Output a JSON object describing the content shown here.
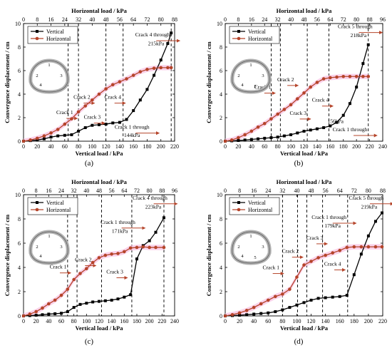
{
  "chart_data": [
    {
      "panel_label": "(a)",
      "type": "line",
      "xlabel": "Vertical load / kPa",
      "x2label": "Horizontal load / kPa",
      "ylabel": "Convergence displacement / cm",
      "xlim": [
        0,
        220
      ],
      "x2lim": [
        0,
        88
      ],
      "ylim": [
        0,
        10
      ],
      "xticks": [
        0,
        20,
        40,
        60,
        80,
        100,
        120,
        140,
        160,
        180,
        200,
        220
      ],
      "x2ticks": [
        0,
        8,
        16,
        24,
        32,
        40,
        48,
        56,
        64,
        72,
        80,
        88
      ],
      "yticks": [
        0,
        2,
        4,
        6,
        8,
        10
      ],
      "legend": "top-left",
      "ring_labels": [
        "1",
        "2",
        "3",
        "4"
      ],
      "colors": {
        "vertical": "#000000",
        "horizontal": "#b5442a",
        "band": "#f8c3e3",
        "arrow": "#b5442a"
      },
      "series": [
        {
          "name": "Vertical",
          "x": [
            0,
            10,
            20,
            30,
            40,
            50,
            60,
            70,
            80,
            90,
            100,
            110,
            120,
            130,
            140,
            150,
            160,
            170,
            180,
            190,
            200,
            210,
            215
          ],
          "values": [
            0,
            0.05,
            0.1,
            0.2,
            0.35,
            0.45,
            0.5,
            0.55,
            0.85,
            1.15,
            1.35,
            1.4,
            1.45,
            1.55,
            1.6,
            1.85,
            2.6,
            3.5,
            4.4,
            5.6,
            6.9,
            8.3,
            9.2
          ]
        },
        {
          "name": "Horizontal",
          "x": [
            0,
            10,
            20,
            30,
            40,
            50,
            60,
            70,
            80,
            90,
            100,
            110,
            120,
            130,
            140,
            150,
            160,
            170,
            180,
            190,
            200,
            210,
            215
          ],
          "values": [
            0,
            0.1,
            0.25,
            0.45,
            0.7,
            1.0,
            1.45,
            1.9,
            2.5,
            3.0,
            3.5,
            4.0,
            4.45,
            4.8,
            5.05,
            5.3,
            5.6,
            5.9,
            6.1,
            6.2,
            6.25,
            6.25,
            6.25
          ]
        }
      ],
      "vlines": [
        65,
        80,
        120,
        145,
        215
      ],
      "annotations": [
        {
          "text": "Crack 1",
          "x": 60,
          "y": 2.3,
          "arrow": true
        },
        {
          "text": "Crack 2",
          "x": 85,
          "y": 3.6,
          "arrow": true
        },
        {
          "text": "Crack 3",
          "x": 100,
          "y": 1.9,
          "arrow": true
        },
        {
          "text": "Crack 4",
          "x": 130,
          "y": 3.6,
          "arrow": true
        },
        {
          "text": "Crack 1 through",
          "x": 158,
          "y": 1.05,
          "arrow": true
        },
        {
          "text": "144kPa",
          "x": 158,
          "y": 0.35,
          "arrow": false
        },
        {
          "text": "Crack 4 through",
          "x": 188,
          "y": 8.9,
          "arrow": true
        },
        {
          "text": "215kPa",
          "x": 193,
          "y": 8.15,
          "arrow": false
        }
      ]
    },
    {
      "panel_label": "(b)",
      "type": "line",
      "xlabel": "Vertical load / kPa",
      "x2label": "Horizontal load / kPa",
      "ylabel": "Convergence displacement / cm",
      "xlim": [
        0,
        240
      ],
      "x2lim": [
        0,
        96
      ],
      "ylim": [
        0,
        10
      ],
      "xticks": [
        0,
        20,
        40,
        60,
        80,
        100,
        120,
        140,
        160,
        180,
        200,
        220,
        240
      ],
      "x2ticks": [
        0,
        8,
        16,
        24,
        32,
        40,
        48,
        56,
        64,
        72,
        80,
        88,
        96
      ],
      "yticks": [
        0,
        2,
        4,
        6,
        8,
        10
      ],
      "legend": "top-left",
      "ring_labels": [
        "1",
        "2",
        "3",
        "4",
        "5"
      ],
      "colors": {
        "vertical": "#000000",
        "horizontal": "#b5442a",
        "band": "#f8c3e3",
        "arrow": "#b5442a"
      },
      "series": [
        {
          "name": "Vertical",
          "x": [
            0,
            10,
            20,
            30,
            40,
            50,
            60,
            70,
            80,
            90,
            100,
            110,
            120,
            130,
            140,
            150,
            160,
            170,
            180,
            190,
            200,
            210,
            218
          ],
          "values": [
            0,
            0.03,
            0.06,
            0.1,
            0.15,
            0.2,
            0.25,
            0.3,
            0.35,
            0.45,
            0.55,
            0.7,
            0.85,
            0.95,
            1.05,
            1.15,
            1.3,
            1.6,
            2.2,
            3.2,
            4.6,
            6.6,
            8.2
          ]
        },
        {
          "name": "Horizontal",
          "x": [
            0,
            10,
            20,
            30,
            40,
            50,
            60,
            70,
            80,
            90,
            100,
            110,
            120,
            130,
            140,
            150,
            160,
            170,
            180,
            190,
            200,
            210,
            218
          ],
          "values": [
            0,
            0.1,
            0.3,
            0.55,
            0.85,
            1.2,
            1.5,
            1.9,
            2.3,
            2.7,
            3.1,
            3.6,
            4.1,
            4.6,
            5.0,
            5.3,
            5.4,
            5.45,
            5.5,
            5.5,
            5.5,
            5.5,
            5.5
          ]
        }
      ],
      "vlines": [
        70,
        84,
        125,
        158,
        218
      ],
      "annotations": [
        {
          "text": "Crack 1",
          "x": 57,
          "y": 4.45,
          "arrow": true
        },
        {
          "text": "Crack 2",
          "x": 92,
          "y": 5.1,
          "arrow": true
        },
        {
          "text": "Crack 3",
          "x": 111,
          "y": 2.25,
          "arrow": true
        },
        {
          "text": "Crack 4",
          "x": 145,
          "y": 3.35,
          "arrow": true
        },
        {
          "text": "156kPa",
          "x": 168,
          "y": 1.55,
          "arrow": false
        },
        {
          "text": "Crack 1 through",
          "x": 190,
          "y": 0.85,
          "arrow": true
        },
        {
          "text": "Crack 5 through",
          "x": 198,
          "y": 9.6,
          "arrow": true
        },
        {
          "text": "218kPa",
          "x": 203,
          "y": 8.85,
          "arrow": false
        }
      ]
    },
    {
      "panel_label": "(c)",
      "type": "line",
      "xlabel": "Vertical load / kPa",
      "x2label": "Horizontal load / kPa",
      "ylabel": "Convergence displacement / cm",
      "xlim": [
        0,
        240
      ],
      "x2lim": [
        0,
        96
      ],
      "ylim": [
        0,
        10
      ],
      "xticks": [
        0,
        20,
        40,
        60,
        80,
        100,
        120,
        140,
        160,
        180,
        200,
        220,
        240
      ],
      "x2ticks": [
        0,
        8,
        16,
        24,
        32,
        40,
        48,
        56,
        64,
        72,
        80,
        88,
        96
      ],
      "yticks": [
        0,
        2,
        4,
        6,
        8,
        10
      ],
      "legend": "top-left",
      "ring_labels": [
        "1",
        "2",
        "3",
        "4"
      ],
      "colors": {
        "vertical": "#000000",
        "horizontal": "#b5442a",
        "band": "#f8c3e3",
        "arrow": "#b5442a"
      },
      "series": [
        {
          "name": "Vertical",
          "x": [
            0,
            10,
            20,
            30,
            40,
            50,
            60,
            70,
            80,
            90,
            100,
            110,
            120,
            130,
            140,
            150,
            160,
            170,
            180,
            190,
            200,
            210,
            223
          ],
          "values": [
            0,
            0.03,
            0.06,
            0.1,
            0.15,
            0.18,
            0.22,
            0.35,
            0.7,
            0.95,
            1.05,
            1.15,
            1.2,
            1.25,
            1.3,
            1.4,
            1.55,
            1.75,
            4.7,
            5.8,
            6.2,
            6.9,
            8.1
          ]
        },
        {
          "name": "Horizontal",
          "x": [
            0,
            10,
            20,
            30,
            40,
            50,
            60,
            70,
            80,
            90,
            100,
            110,
            120,
            130,
            140,
            150,
            160,
            170,
            180,
            190,
            200,
            210,
            223
          ],
          "values": [
            0,
            0.15,
            0.35,
            0.65,
            1.0,
            1.3,
            1.7,
            2.2,
            3.0,
            3.5,
            3.9,
            4.4,
            4.8,
            5.0,
            5.1,
            5.15,
            5.3,
            5.6,
            5.65,
            5.7,
            5.65,
            5.65,
            5.65
          ]
        }
      ],
      "vlines": [
        70,
        85,
        124,
        172,
        223
      ],
      "annotations": [
        {
          "text": "Crack 1",
          "x": 55,
          "y": 3.9,
          "arrow": true
        },
        {
          "text": "Crack 2",
          "x": 95,
          "y": 4.5,
          "arrow": true
        },
        {
          "text": "Crack 3",
          "x": 145,
          "y": 3.5,
          "arrow": true
        },
        {
          "text": "Crack 1 through",
          "x": 150,
          "y": 7.6,
          "arrow": true
        },
        {
          "text": "171kPa",
          "x": 153,
          "y": 6.85,
          "arrow": false
        },
        {
          "text": "Crack 4 through",
          "x": 201,
          "y": 9.6,
          "arrow": true
        },
        {
          "text": "223kPa",
          "x": 206,
          "y": 8.85,
          "arrow": false
        }
      ]
    },
    {
      "panel_label": "(d)",
      "type": "line",
      "xlabel": "Vertical load / kPa",
      "x2label": "Horizontal load / kPa",
      "ylabel": "Convergence displacement / cm",
      "xlim": [
        0,
        220
      ],
      "x2lim": [
        0,
        88
      ],
      "ylim": [
        0,
        10
      ],
      "xticks": [
        0,
        20,
        40,
        60,
        80,
        100,
        120,
        140,
        160,
        180,
        200,
        220
      ],
      "x2ticks": [
        0,
        8,
        16,
        24,
        32,
        40,
        48,
        56,
        64,
        72,
        80,
        88
      ],
      "yticks": [
        0,
        2,
        4,
        6,
        8,
        10
      ],
      "legend": "top-left",
      "ring_labels": [
        "1",
        "2",
        "3",
        "4",
        "5"
      ],
      "colors": {
        "vertical": "#000000",
        "horizontal": "#b5442a",
        "band": "#f8c3e3",
        "arrow": "#b5442a"
      },
      "series": [
        {
          "name": "Vertical",
          "x": [
            0,
            10,
            20,
            30,
            40,
            50,
            60,
            70,
            80,
            90,
            100,
            110,
            120,
            130,
            140,
            150,
            160,
            170,
            180,
            190,
            200,
            210,
            219
          ],
          "values": [
            0,
            0.03,
            0.06,
            0.1,
            0.15,
            0.2,
            0.25,
            0.35,
            0.5,
            0.7,
            0.9,
            1.1,
            1.3,
            1.45,
            1.5,
            1.55,
            1.6,
            1.7,
            3.4,
            5.1,
            6.6,
            7.8,
            8.5
          ]
        },
        {
          "name": "Horizontal",
          "x": [
            0,
            10,
            20,
            30,
            40,
            50,
            60,
            70,
            80,
            90,
            100,
            110,
            120,
            130,
            140,
            150,
            160,
            170,
            180,
            190,
            200,
            210,
            219
          ],
          "values": [
            0,
            0.1,
            0.25,
            0.45,
            0.7,
            1.0,
            1.3,
            1.6,
            1.8,
            2.2,
            3.2,
            4.2,
            4.5,
            4.8,
            5.0,
            5.2,
            5.4,
            5.65,
            5.7,
            5.7,
            5.7,
            5.7,
            5.7
          ]
        }
      ],
      "vlines": [
        80,
        101,
        114,
        136,
        171
      ],
      "annotations": [
        {
          "text": "Crack 1",
          "x": 64,
          "y": 3.85,
          "arrow": true
        },
        {
          "text": "Crack 2",
          "x": 91,
          "y": 5.2,
          "arrow": true
        },
        {
          "text": "Crack 3",
          "x": 125,
          "y": 6.3,
          "arrow": true
        },
        {
          "text": "Crack 4",
          "x": 150,
          "y": 4.15,
          "arrow": true
        },
        {
          "text": "Crack 1 through",
          "x": 145,
          "y": 8.0,
          "arrow": true
        },
        {
          "text": "179kPa",
          "x": 150,
          "y": 7.3,
          "arrow": false
        },
        {
          "text": "Crack 5 through",
          "x": 197,
          "y": 9.6,
          "arrow": true
        },
        {
          "text": "219kPa",
          "x": 201,
          "y": 8.85,
          "arrow": false
        }
      ]
    }
  ]
}
